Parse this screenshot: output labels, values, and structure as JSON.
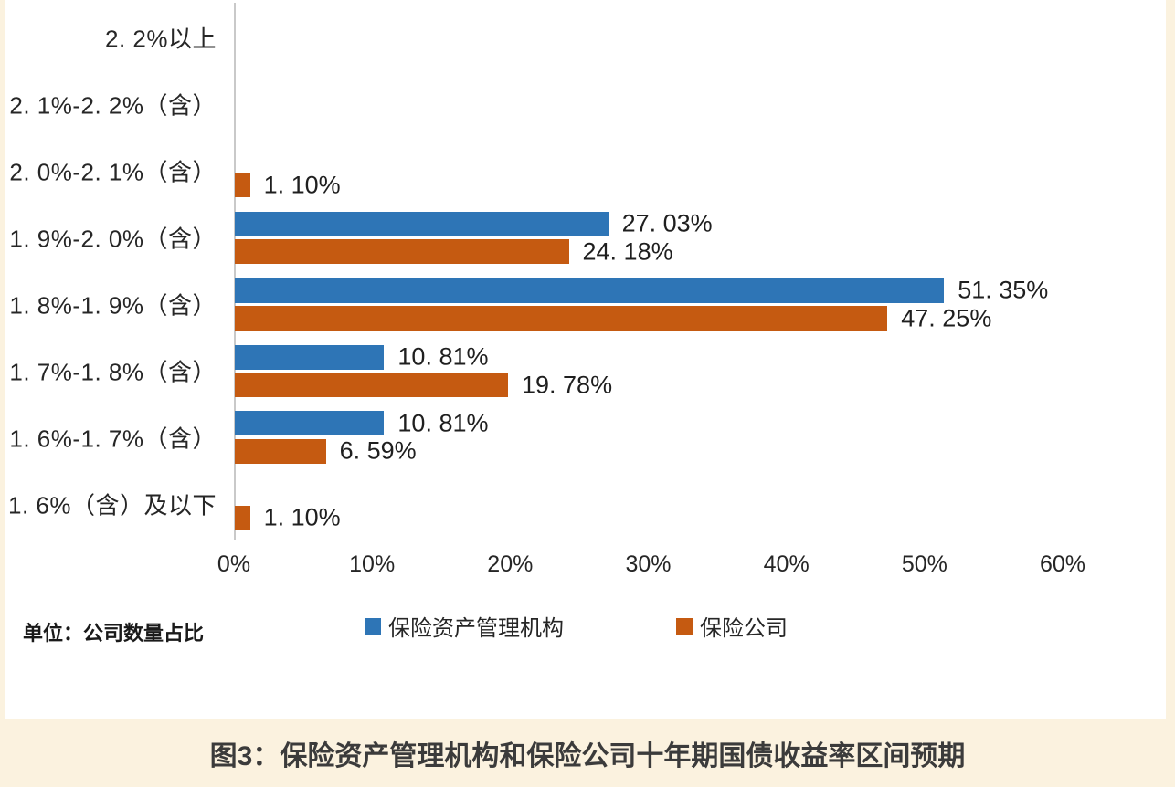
{
  "page": {
    "background": "#FBF2DF",
    "card_background": "#FFFFFF",
    "axis_color": "#C9C9C9",
    "text_color": "#262626",
    "caption_color": "#3B3B3B"
  },
  "chart_data": {
    "type": "bar",
    "orientation": "horizontal",
    "title": "图3：保险资产管理机构和保险公司十年期国债收益率区间预期",
    "unit_label": "单位：公司数量占比",
    "categories": [
      "2.2%以上",
      "2.1%-2.2%（含）",
      "2.0%-2.1%（含）",
      "1.9%-2.0%（含）",
      "1.8%-1.9%（含）",
      "1.7%-1.8%（含）",
      "1.6%-1.7%（含）",
      "1.6%（含）及以下"
    ],
    "category_labels_display": [
      "2. 2%以上",
      "2. 1%-2. 2%（含）",
      "2. 0%-2. 1%（含）",
      "1. 9%-2. 0%（含）",
      "1. 8%-1. 9%（含）",
      "1. 7%-1. 8%（含）",
      "1. 6%-1. 7%（含）",
      "1. 6%（含）及以下"
    ],
    "series": [
      {
        "name": "保险资产管理机构",
        "color": "#2E75B6",
        "values": [
          0,
          0,
          0,
          27.03,
          51.35,
          10.81,
          10.81,
          0
        ],
        "value_labels": [
          "",
          "",
          "",
          "27. 03%",
          "51. 35%",
          "10. 81%",
          "10. 81%",
          ""
        ]
      },
      {
        "name": "保险公司",
        "color": "#C55A11",
        "values": [
          0,
          0,
          1.1,
          24.18,
          47.25,
          19.78,
          6.59,
          1.1
        ],
        "value_labels": [
          "",
          "",
          "1. 10%",
          "24. 18%",
          "47. 25%",
          "19. 78%",
          "6. 59%",
          "1. 10%"
        ]
      }
    ],
    "x_ticks": [
      "0%",
      "10%",
      "20%",
      "30%",
      "40%",
      "50%",
      "60%"
    ],
    "xlim": [
      0,
      60
    ],
    "grid": false,
    "legend_position": "bottom"
  }
}
